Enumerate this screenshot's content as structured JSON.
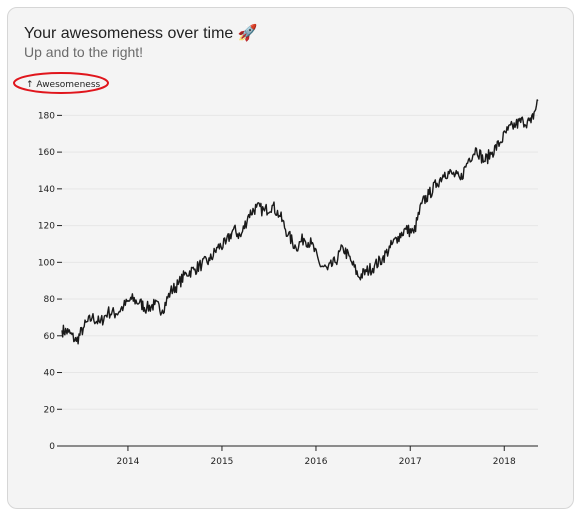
{
  "header": {
    "title": "Your awesomeness over time 🚀",
    "subtitle": "Up and to the right!"
  },
  "colors": {
    "line": "#1a1a1a",
    "grid": "#e6e6e6",
    "highlight": "#e0151c",
    "card_bg": "#f4f4f4"
  },
  "chart_data": {
    "type": "line",
    "title": "Your awesomeness over time 🚀",
    "subtitle": "Up and to the right!",
    "xlabel": "",
    "ylabel": "↑ Awesomeness",
    "ylim": [
      0,
      190
    ],
    "xlim": [
      "2013-04-20",
      "2018-05-12"
    ],
    "y_ticks": [
      0,
      20,
      40,
      60,
      80,
      100,
      120,
      140,
      160,
      180
    ],
    "x_ticks": [
      {
        "date": "2014-01-01",
        "label": "2014"
      },
      {
        "date": "2015-01-01",
        "label": "2015"
      },
      {
        "date": "2016-01-01",
        "label": "2016"
      },
      {
        "date": "2017-01-01",
        "label": "2017"
      },
      {
        "date": "2018-01-01",
        "label": "2018"
      }
    ],
    "grid": "horizontal",
    "series": [
      {
        "x": [
          "2013-04-20",
          "2013-05-15",
          "2013-06-15",
          "2013-07-15",
          "2013-08-15",
          "2013-09-15",
          "2013-10-15",
          "2013-11-15",
          "2013-12-15",
          "2014-01-15",
          "2014-02-15",
          "2014-03-15",
          "2014-04-15",
          "2014-05-15",
          "2014-06-15",
          "2014-07-15",
          "2014-08-15",
          "2014-09-15",
          "2014-10-15",
          "2014-11-15",
          "2014-12-15",
          "2015-01-15",
          "2015-02-15",
          "2015-03-15",
          "2015-04-15",
          "2015-05-15",
          "2015-06-15",
          "2015-07-15",
          "2015-08-15",
          "2015-09-15",
          "2015-10-15",
          "2015-11-15",
          "2015-12-15",
          "2016-01-15",
          "2016-02-15",
          "2016-03-15",
          "2016-04-15",
          "2016-05-15",
          "2016-06-15",
          "2016-07-15",
          "2016-08-15",
          "2016-09-15",
          "2016-10-15",
          "2016-11-15",
          "2016-12-15",
          "2017-01-15",
          "2017-02-15",
          "2017-03-15",
          "2017-04-15",
          "2017-05-15",
          "2017-06-15",
          "2017-07-15",
          "2017-08-15",
          "2017-09-15",
          "2017-10-15",
          "2017-11-15",
          "2017-12-15",
          "2018-01-15",
          "2018-02-15",
          "2018-03-15",
          "2018-04-15",
          "2018-05-12"
        ],
        "y": [
          63,
          62,
          57,
          65,
          70,
          67,
          73,
          72,
          76,
          80,
          78,
          75,
          77,
          74,
          84,
          88,
          94,
          96,
          99,
          101,
          108,
          110,
          118,
          114,
          126,
          130,
          128,
          131,
          125,
          115,
          108,
          113,
          110,
          99,
          96,
          100,
          108,
          101,
          92,
          95,
          98,
          102,
          108,
          114,
          118,
          116,
          132,
          137,
          143,
          149,
          148,
          145,
          156,
          162,
          155,
          160,
          165,
          172,
          175,
          177,
          176,
          188
        ]
      }
    ]
  }
}
